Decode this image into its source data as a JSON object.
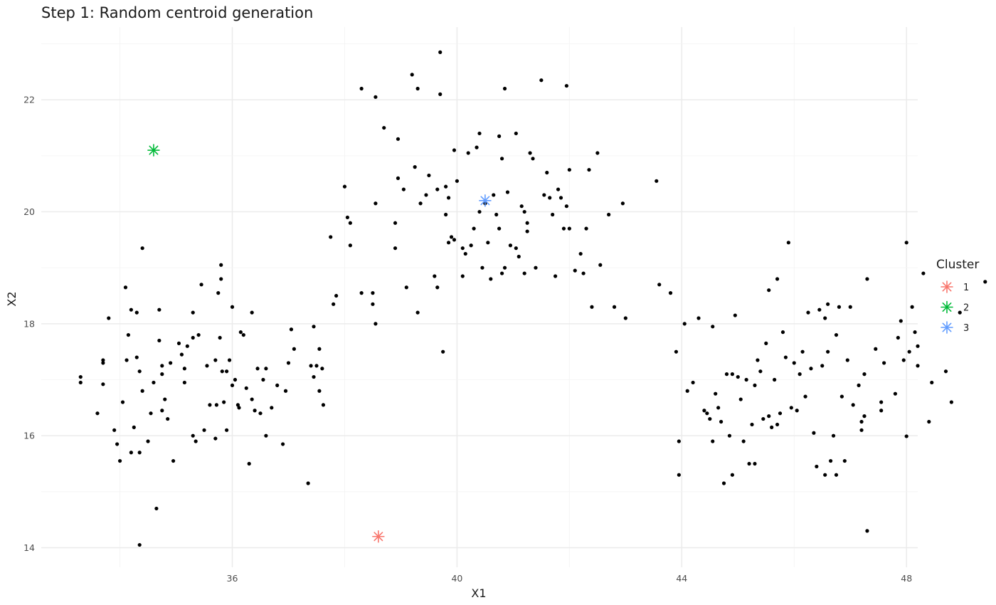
{
  "chart_data": {
    "type": "scatter",
    "title": "Step 1: Random centroid generation",
    "xlabel": "X1",
    "ylabel": "X2",
    "xlim": [
      32.6,
      48.2
    ],
    "ylim": [
      13.65,
      23.3
    ],
    "x_ticks": [
      36,
      40,
      44,
      48
    ],
    "y_ticks": [
      14,
      16,
      18,
      20,
      22
    ],
    "x_tick_labels": [
      "36",
      "40",
      "44",
      "48"
    ],
    "y_tick_labels": [
      "14",
      "16",
      "18",
      "20",
      "22"
    ],
    "grid": true,
    "legend": {
      "title": "Cluster",
      "position": "right",
      "entries": [
        {
          "label": "1",
          "color": "#F8766D"
        },
        {
          "label": "2",
          "color": "#00BA38"
        },
        {
          "label": "3",
          "color": "#619CFF"
        }
      ]
    },
    "point_color": "#000000",
    "centroids": [
      {
        "cluster": "1",
        "x": 38.6,
        "y": 14.2,
        "color": "#F8766D"
      },
      {
        "cluster": "2",
        "x": 34.6,
        "y": 21.1,
        "color": "#00BA38"
      },
      {
        "cluster": "3",
        "x": 40.5,
        "y": 20.2,
        "color": "#619CFF"
      }
    ],
    "points": [
      [
        33.3,
        17.05
      ],
      [
        33.3,
        16.95
      ],
      [
        33.6,
        16.4
      ],
      [
        33.7,
        17.35
      ],
      [
        33.7,
        17.3
      ],
      [
        33.7,
        16.92
      ],
      [
        33.8,
        18.1
      ],
      [
        33.9,
        16.1
      ],
      [
        33.95,
        15.85
      ],
      [
        34.0,
        15.55
      ],
      [
        34.05,
        16.6
      ],
      [
        34.1,
        18.65
      ],
      [
        34.12,
        17.35
      ],
      [
        34.15,
        17.8
      ],
      [
        34.2,
        18.25
      ],
      [
        34.2,
        15.7
      ],
      [
        34.25,
        16.15
      ],
      [
        34.3,
        17.4
      ],
      [
        34.3,
        18.2
      ],
      [
        34.35,
        17.15
      ],
      [
        34.35,
        15.7
      ],
      [
        34.4,
        16.8
      ],
      [
        34.4,
        19.35
      ],
      [
        34.5,
        15.9
      ],
      [
        34.55,
        16.4
      ],
      [
        34.6,
        16.95
      ],
      [
        34.7,
        17.7
      ],
      [
        34.7,
        18.25
      ],
      [
        34.75,
        17.25
      ],
      [
        34.75,
        16.45
      ],
      [
        34.75,
        17.1
      ],
      [
        34.8,
        16.65
      ],
      [
        34.85,
        16.3
      ],
      [
        34.9,
        17.3
      ],
      [
        34.95,
        15.55
      ],
      [
        35.05,
        17.65
      ],
      [
        35.1,
        17.45
      ],
      [
        35.15,
        17.2
      ],
      [
        35.15,
        16.95
      ],
      [
        35.2,
        17.6
      ],
      [
        35.3,
        17.75
      ],
      [
        35.3,
        18.2
      ],
      [
        35.3,
        16.0
      ],
      [
        35.35,
        15.9
      ],
      [
        35.4,
        17.8
      ],
      [
        35.45,
        18.7
      ],
      [
        35.5,
        16.1
      ],
      [
        35.55,
        17.25
      ],
      [
        35.6,
        16.55
      ],
      [
        35.7,
        17.35
      ],
      [
        35.7,
        15.95
      ],
      [
        35.72,
        16.55
      ],
      [
        35.75,
        18.55
      ],
      [
        35.78,
        17.75
      ],
      [
        35.8,
        18.8
      ],
      [
        35.8,
        19.05
      ],
      [
        35.82,
        17.15
      ],
      [
        35.85,
        16.6
      ],
      [
        35.9,
        17.15
      ],
      [
        35.9,
        16.1
      ],
      [
        35.95,
        17.35
      ],
      [
        36.0,
        16.9
      ],
      [
        36.0,
        18.3
      ],
      [
        36.05,
        17.0
      ],
      [
        36.1,
        16.55
      ],
      [
        36.12,
        16.5
      ],
      [
        36.15,
        17.85
      ],
      [
        36.2,
        17.8
      ],
      [
        36.25,
        16.85
      ],
      [
        36.3,
        15.5
      ],
      [
        36.35,
        16.65
      ],
      [
        36.35,
        18.2
      ],
      [
        36.4,
        16.45
      ],
      [
        36.45,
        17.2
      ],
      [
        36.5,
        16.4
      ],
      [
        36.55,
        17.0
      ],
      [
        36.6,
        16.0
      ],
      [
        36.6,
        17.2
      ],
      [
        36.7,
        16.5
      ],
      [
        36.8,
        16.9
      ],
      [
        36.9,
        15.85
      ],
      [
        36.95,
        16.8
      ],
      [
        37.0,
        17.3
      ],
      [
        37.05,
        17.9
      ],
      [
        37.1,
        17.55
      ],
      [
        37.35,
        15.15
      ],
      [
        37.4,
        17.25
      ],
      [
        37.45,
        17.05
      ],
      [
        37.45,
        17.95
      ],
      [
        37.5,
        17.25
      ],
      [
        37.55,
        16.8
      ],
      [
        37.6,
        17.2
      ],
      [
        37.62,
        16.55
      ],
      [
        37.8,
        18.35
      ],
      [
        37.85,
        18.5
      ],
      [
        34.35,
        14.05
      ],
      [
        34.65,
        14.7
      ],
      [
        37.55,
        17.55
      ],
      [
        37.75,
        19.55
      ],
      [
        38.0,
        20.45
      ],
      [
        38.05,
        19.9
      ],
      [
        38.1,
        19.8
      ],
      [
        38.1,
        19.4
      ],
      [
        38.3,
        18.55
      ],
      [
        38.3,
        22.2
      ],
      [
        38.5,
        18.55
      ],
      [
        38.5,
        18.35
      ],
      [
        38.55,
        18.0
      ],
      [
        38.55,
        20.15
      ],
      [
        38.55,
        22.05
      ],
      [
        38.7,
        21.5
      ],
      [
        38.9,
        19.35
      ],
      [
        38.9,
        19.8
      ],
      [
        38.95,
        20.6
      ],
      [
        38.95,
        21.3
      ],
      [
        39.05,
        20.4
      ],
      [
        39.1,
        18.65
      ],
      [
        39.2,
        22.45
      ],
      [
        39.25,
        20.8
      ],
      [
        39.3,
        18.2
      ],
      [
        39.3,
        22.2
      ],
      [
        39.35,
        20.15
      ],
      [
        39.45,
        20.3
      ],
      [
        39.5,
        20.65
      ],
      [
        39.6,
        18.85
      ],
      [
        39.65,
        18.65
      ],
      [
        39.65,
        20.4
      ],
      [
        39.7,
        22.1
      ],
      [
        39.7,
        22.85
      ],
      [
        39.75,
        17.5
      ],
      [
        39.8,
        20.45
      ],
      [
        39.8,
        19.95
      ],
      [
        39.85,
        20.25
      ],
      [
        39.85,
        19.45
      ],
      [
        39.9,
        19.55
      ],
      [
        39.95,
        21.1
      ],
      [
        39.95,
        19.5
      ],
      [
        40.0,
        20.55
      ],
      [
        40.1,
        18.85
      ],
      [
        40.1,
        19.35
      ],
      [
        40.15,
        19.25
      ],
      [
        40.2,
        21.05
      ],
      [
        40.25,
        19.4
      ],
      [
        40.3,
        19.7
      ],
      [
        40.35,
        21.15
      ],
      [
        40.4,
        21.4
      ],
      [
        40.4,
        20.0
      ],
      [
        40.45,
        19.0
      ],
      [
        40.5,
        20.15
      ],
      [
        40.55,
        19.45
      ],
      [
        40.6,
        18.8
      ],
      [
        40.65,
        20.3
      ],
      [
        40.7,
        19.95
      ],
      [
        40.75,
        19.7
      ],
      [
        40.75,
        21.35
      ],
      [
        40.8,
        18.9
      ],
      [
        40.8,
        20.95
      ],
      [
        40.85,
        19.0
      ],
      [
        40.85,
        22.2
      ],
      [
        40.9,
        20.35
      ],
      [
        40.95,
        19.4
      ],
      [
        41.05,
        19.35
      ],
      [
        41.05,
        21.4
      ],
      [
        41.1,
        19.2
      ],
      [
        41.15,
        20.1
      ],
      [
        41.2,
        18.9
      ],
      [
        41.2,
        20.0
      ],
      [
        41.25,
        19.8
      ],
      [
        41.25,
        19.65
      ],
      [
        41.3,
        21.05
      ],
      [
        41.35,
        20.95
      ],
      [
        41.4,
        19.0
      ],
      [
        41.5,
        22.35
      ],
      [
        41.55,
        20.3
      ],
      [
        41.6,
        20.7
      ],
      [
        41.65,
        20.25
      ],
      [
        41.7,
        19.95
      ],
      [
        41.75,
        18.85
      ],
      [
        41.8,
        20.4
      ],
      [
        41.85,
        20.25
      ],
      [
        41.9,
        19.7
      ],
      [
        41.95,
        20.1
      ],
      [
        41.95,
        22.25
      ],
      [
        42.0,
        19.7
      ],
      [
        42.0,
        20.75
      ],
      [
        42.1,
        18.95
      ],
      [
        42.2,
        19.25
      ],
      [
        42.25,
        18.9
      ],
      [
        42.3,
        19.7
      ],
      [
        42.35,
        20.75
      ],
      [
        42.4,
        18.3
      ],
      [
        42.5,
        21.05
      ],
      [
        42.55,
        19.05
      ],
      [
        42.7,
        19.95
      ],
      [
        42.8,
        18.3
      ],
      [
        42.95,
        20.15
      ],
      [
        43.0,
        18.1
      ],
      [
        43.55,
        20.55
      ],
      [
        43.6,
        18.7
      ],
      [
        43.8,
        18.55
      ],
      [
        43.9,
        17.5
      ],
      [
        43.95,
        15.9
      ],
      [
        43.95,
        15.3
      ],
      [
        44.05,
        18.0
      ],
      [
        44.1,
        16.8
      ],
      [
        44.2,
        16.95
      ],
      [
        44.3,
        18.1
      ],
      [
        44.4,
        16.45
      ],
      [
        44.45,
        16.4
      ],
      [
        44.5,
        16.3
      ],
      [
        44.55,
        15.9
      ],
      [
        44.55,
        17.95
      ],
      [
        44.6,
        16.75
      ],
      [
        44.65,
        16.5
      ],
      [
        44.7,
        16.25
      ],
      [
        44.75,
        15.15
      ],
      [
        44.8,
        17.1
      ],
      [
        44.85,
        16.0
      ],
      [
        44.9,
        17.1
      ],
      [
        44.9,
        15.3
      ],
      [
        44.95,
        18.15
      ],
      [
        45.0,
        17.05
      ],
      [
        45.05,
        16.65
      ],
      [
        45.1,
        15.9
      ],
      [
        45.15,
        17.0
      ],
      [
        45.2,
        15.5
      ],
      [
        45.25,
        16.2
      ],
      [
        45.3,
        15.5
      ],
      [
        45.3,
        16.9
      ],
      [
        45.35,
        17.35
      ],
      [
        45.4,
        17.15
      ],
      [
        45.45,
        16.3
      ],
      [
        45.5,
        17.65
      ],
      [
        45.55,
        18.6
      ],
      [
        45.55,
        16.35
      ],
      [
        45.6,
        16.15
      ],
      [
        45.65,
        17.0
      ],
      [
        45.7,
        18.8
      ],
      [
        45.7,
        16.2
      ],
      [
        45.75,
        16.4
      ],
      [
        45.8,
        17.85
      ],
      [
        45.85,
        17.4
      ],
      [
        45.9,
        19.45
      ],
      [
        45.95,
        16.5
      ],
      [
        46.0,
        17.3
      ],
      [
        46.05,
        16.45
      ],
      [
        46.1,
        17.1
      ],
      [
        46.15,
        17.5
      ],
      [
        46.2,
        16.7
      ],
      [
        46.25,
        18.2
      ],
      [
        46.3,
        17.2
      ],
      [
        46.35,
        16.05
      ],
      [
        46.4,
        15.45
      ],
      [
        46.45,
        18.25
      ],
      [
        46.5,
        17.25
      ],
      [
        46.55,
        15.3
      ],
      [
        46.55,
        18.1
      ],
      [
        46.6,
        17.5
      ],
      [
        46.6,
        18.35
      ],
      [
        46.65,
        15.55
      ],
      [
        46.7,
        16.0
      ],
      [
        46.75,
        15.3
      ],
      [
        46.75,
        17.8
      ],
      [
        46.8,
        18.3
      ],
      [
        46.85,
        16.7
      ],
      [
        46.9,
        15.55
      ],
      [
        46.95,
        17.35
      ],
      [
        47.0,
        18.3
      ],
      [
        47.05,
        16.55
      ],
      [
        47.15,
        16.9
      ],
      [
        47.2,
        16.1
      ],
      [
        47.2,
        16.25
      ],
      [
        47.25,
        17.1
      ],
      [
        47.25,
        16.35
      ],
      [
        47.3,
        18.8
      ],
      [
        47.45,
        17.55
      ],
      [
        47.55,
        16.45
      ],
      [
        47.55,
        16.6
      ],
      [
        47.6,
        17.3
      ],
      [
        47.8,
        16.75
      ],
      [
        47.85,
        17.75
      ],
      [
        47.9,
        18.05
      ],
      [
        47.95,
        17.35
      ],
      [
        48.0,
        19.45
      ],
      [
        48.0,
        15.99
      ],
      [
        48.05,
        17.5
      ],
      [
        48.1,
        18.3
      ],
      [
        48.15,
        17.85
      ],
      [
        48.2,
        17.25
      ],
      [
        48.2,
        17.6
      ],
      [
        48.3,
        18.9
      ],
      [
        48.4,
        16.25
      ],
      [
        48.45,
        16.95
      ],
      [
        48.7,
        17.15
      ],
      [
        48.8,
        16.6
      ],
      [
        48.95,
        18.2
      ],
      [
        49.4,
        18.75
      ],
      [
        47.3,
        14.3
      ]
    ]
  }
}
